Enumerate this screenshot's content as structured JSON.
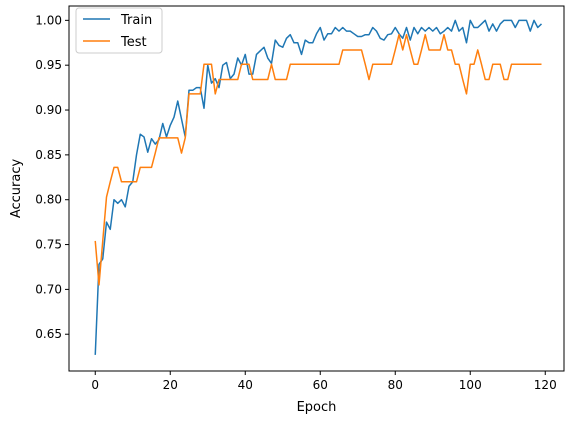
{
  "chart_data": {
    "type": "line",
    "title": "",
    "xlabel": "Epoch",
    "ylabel": "Accuracy",
    "xlim": [
      -7,
      125
    ],
    "ylim": [
      0.609,
      1.016
    ],
    "xticks": [
      0,
      20,
      40,
      60,
      80,
      100,
      120
    ],
    "yticks": [
      0.65,
      0.7,
      0.75,
      0.8,
      0.85,
      0.9,
      0.95,
      1.0
    ],
    "xtick_labels": [
      "0",
      "20",
      "40",
      "60",
      "80",
      "100",
      "120"
    ],
    "ytick_labels": [
      "0.65",
      "0.70",
      "0.75",
      "0.80",
      "0.85",
      "0.90",
      "0.95",
      "1.00"
    ],
    "grid": false,
    "legend_position": "top-left",
    "series": [
      {
        "name": "Train",
        "color": "#1f77b4",
        "x": [
          0,
          1,
          2,
          3,
          4,
          5,
          6,
          7,
          8,
          9,
          10,
          11,
          12,
          13,
          14,
          15,
          16,
          17,
          18,
          19,
          20,
          21,
          22,
          23,
          24,
          25,
          26,
          27,
          28,
          29,
          30,
          31,
          32,
          33,
          34,
          35,
          36,
          37,
          38,
          39,
          40,
          41,
          42,
          43,
          44,
          45,
          46,
          47,
          48,
          49,
          50,
          51,
          52,
          53,
          54,
          55,
          56,
          57,
          58,
          59,
          60,
          61,
          62,
          63,
          64,
          65,
          66,
          67,
          68,
          69,
          70,
          71,
          72,
          73,
          74,
          75,
          76,
          77,
          78,
          79,
          80,
          81,
          82,
          83,
          84,
          85,
          86,
          87,
          88,
          89,
          90,
          91,
          92,
          93,
          94,
          95,
          96,
          97,
          98,
          99,
          100,
          101,
          102,
          103,
          104,
          105,
          106,
          107,
          108,
          109,
          110,
          111,
          112,
          113,
          114,
          115,
          116,
          117,
          118,
          119
        ],
        "values": [
          0.627,
          0.728,
          0.734,
          0.775,
          0.767,
          0.8,
          0.796,
          0.8,
          0.792,
          0.815,
          0.82,
          0.85,
          0.873,
          0.87,
          0.853,
          0.868,
          0.862,
          0.867,
          0.885,
          0.87,
          0.883,
          0.892,
          0.91,
          0.89,
          0.87,
          0.922,
          0.922,
          0.925,
          0.925,
          0.902,
          0.95,
          0.93,
          0.935,
          0.925,
          0.95,
          0.953,
          0.935,
          0.94,
          0.958,
          0.95,
          0.962,
          0.94,
          0.94,
          0.962,
          0.966,
          0.97,
          0.958,
          0.952,
          0.978,
          0.972,
          0.97,
          0.98,
          0.984,
          0.975,
          0.975,
          0.962,
          0.978,
          0.975,
          0.975,
          0.985,
          0.992,
          0.978,
          0.985,
          0.985,
          0.992,
          0.988,
          0.992,
          0.988,
          0.988,
          0.985,
          0.982,
          0.982,
          0.984,
          0.984,
          0.992,
          0.988,
          0.98,
          0.978,
          0.984,
          0.985,
          0.992,
          0.985,
          0.98,
          0.992,
          0.978,
          0.992,
          0.985,
          0.992,
          0.988,
          0.992,
          0.988,
          0.992,
          0.985,
          0.988,
          0.992,
          0.988,
          1.0,
          0.988,
          0.992,
          0.975,
          1.0,
          0.992,
          0.992,
          0.996,
          1.0,
          0.988,
          0.996,
          0.988,
          0.996,
          1.0,
          1.0,
          1.0,
          0.992,
          1.0,
          1.0,
          1.0,
          0.988,
          1.0,
          0.992,
          0.996
        ]
      },
      {
        "name": "Test",
        "color": "#ff7f0e",
        "x": [
          0,
          1,
          2,
          3,
          4,
          5,
          6,
          7,
          8,
          9,
          10,
          11,
          12,
          13,
          14,
          15,
          16,
          17,
          18,
          19,
          20,
          21,
          22,
          23,
          24,
          25,
          26,
          27,
          28,
          29,
          30,
          31,
          32,
          33,
          34,
          35,
          36,
          37,
          38,
          39,
          40,
          41,
          42,
          43,
          44,
          45,
          46,
          47,
          48,
          49,
          50,
          51,
          52,
          53,
          54,
          55,
          56,
          57,
          58,
          59,
          60,
          61,
          62,
          63,
          64,
          65,
          66,
          67,
          68,
          69,
          70,
          71,
          72,
          73,
          74,
          75,
          76,
          77,
          78,
          79,
          80,
          81,
          82,
          83,
          84,
          85,
          86,
          87,
          88,
          89,
          90,
          91,
          92,
          93,
          94,
          95,
          96,
          97,
          98,
          99,
          100,
          101,
          102,
          103,
          104,
          105,
          106,
          107,
          108,
          109,
          110,
          111,
          112,
          113,
          114,
          115,
          116,
          117,
          118,
          119
        ],
        "values": [
          0.754,
          0.705,
          0.754,
          0.803,
          0.82,
          0.836,
          0.836,
          0.82,
          0.82,
          0.82,
          0.82,
          0.82,
          0.836,
          0.836,
          0.836,
          0.836,
          0.852,
          0.869,
          0.869,
          0.869,
          0.869,
          0.869,
          0.869,
          0.852,
          0.869,
          0.918,
          0.918,
          0.918,
          0.918,
          0.951,
          0.951,
          0.951,
          0.918,
          0.934,
          0.934,
          0.934,
          0.934,
          0.934,
          0.934,
          0.951,
          0.951,
          0.951,
          0.934,
          0.934,
          0.934,
          0.934,
          0.934,
          0.951,
          0.934,
          0.934,
          0.934,
          0.934,
          0.951,
          0.951,
          0.951,
          0.951,
          0.951,
          0.951,
          0.951,
          0.951,
          0.951,
          0.951,
          0.951,
          0.951,
          0.951,
          0.951,
          0.967,
          0.967,
          0.967,
          0.967,
          0.967,
          0.967,
          0.951,
          0.934,
          0.951,
          0.951,
          0.951,
          0.951,
          0.951,
          0.951,
          0.967,
          0.984,
          0.967,
          0.984,
          0.967,
          0.951,
          0.951,
          0.967,
          0.984,
          0.967,
          0.967,
          0.967,
          0.967,
          0.984,
          0.967,
          0.967,
          0.951,
          0.951,
          0.934,
          0.918,
          0.951,
          0.951,
          0.967,
          0.951,
          0.934,
          0.934,
          0.951,
          0.951,
          0.951,
          0.934,
          0.934,
          0.951,
          0.951,
          0.951,
          0.951,
          0.951,
          0.951,
          0.951,
          0.951,
          0.951
        ]
      }
    ]
  }
}
